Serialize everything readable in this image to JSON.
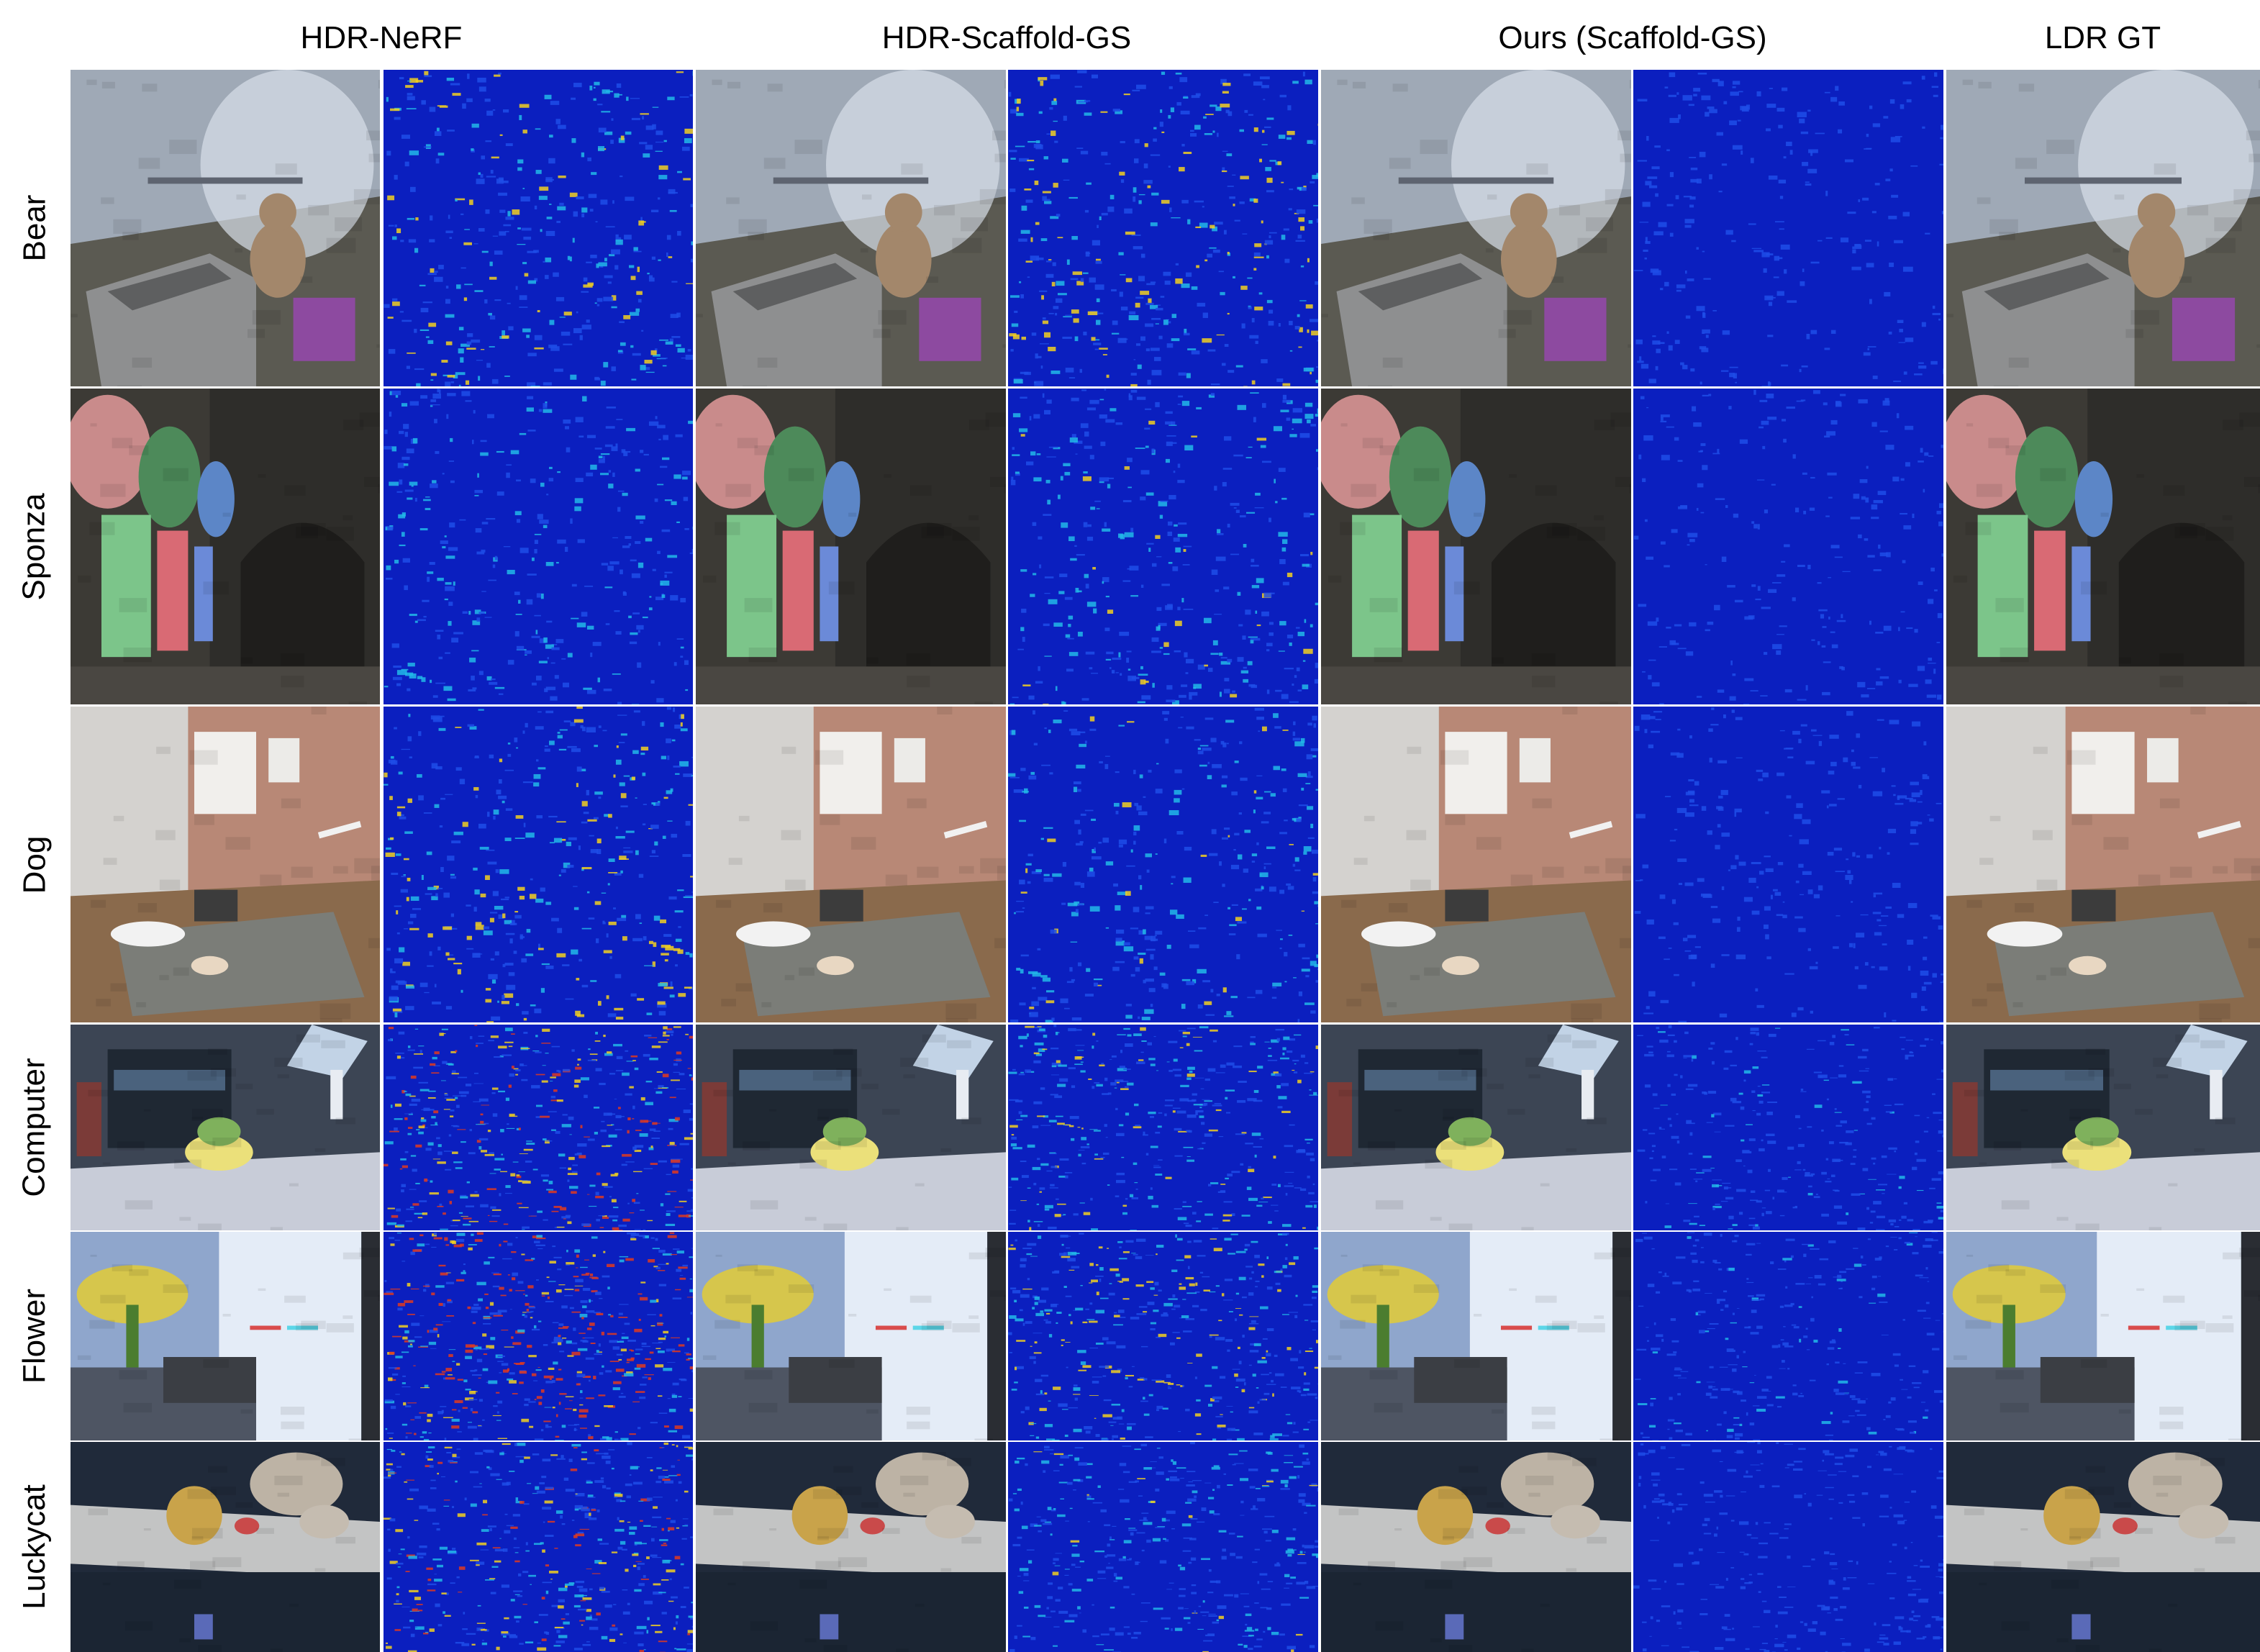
{
  "columns": [
    {
      "label": "HDR-NeRF"
    },
    {
      "label": "HDR-Scaffold-GS"
    },
    {
      "label": "Ours (Scaffold-GS)"
    },
    {
      "label": "LDR GT"
    }
  ],
  "rows": [
    {
      "label": "Bear",
      "scene": "bear",
      "errors": [
        0.55,
        0.6,
        0.25
      ]
    },
    {
      "label": "Sponza",
      "scene": "sponza",
      "errors": [
        0.45,
        0.5,
        0.2
      ]
    },
    {
      "label": "Dog",
      "scene": "dog",
      "errors": [
        0.6,
        0.5,
        0.25
      ]
    },
    {
      "label": "Computer",
      "scene": "computer",
      "errors": [
        0.75,
        0.55,
        0.35
      ]
    },
    {
      "label": "Flower",
      "scene": "flower",
      "errors": [
        0.9,
        0.6,
        0.35
      ]
    },
    {
      "label": "Luckycat",
      "scene": "luckycat",
      "errors": [
        0.7,
        0.5,
        0.3
      ]
    }
  ]
}
